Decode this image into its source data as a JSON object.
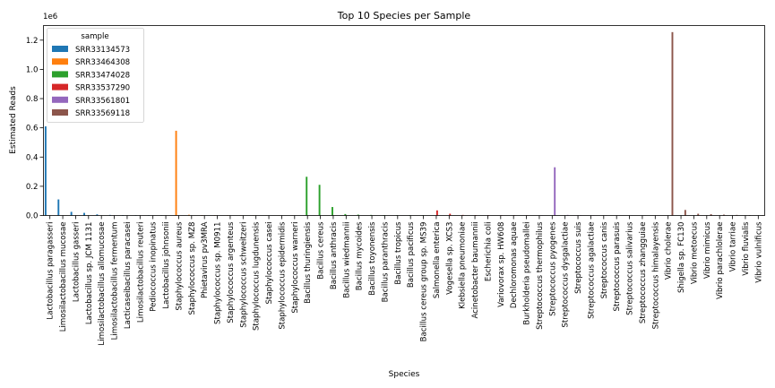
{
  "chart_data": {
    "type": "bar",
    "title": "Top 10 Species per Sample",
    "xlabel": "Species",
    "ylabel": "Estimated Reads",
    "y_offset_label": "1e6",
    "ylim": [
      0,
      1300000
    ],
    "yticks": [
      0,
      200000,
      400000,
      600000,
      800000,
      1000000,
      1200000
    ],
    "ytick_labels": [
      "0.0",
      "0.2",
      "0.4",
      "0.6",
      "0.8",
      "1.0",
      "1.2"
    ],
    "grid": false,
    "legend": {
      "title": "sample",
      "placement": "top-left"
    },
    "categories": [
      "Lactobacillus paragasseri",
      "Limosilactobacillus mucosae",
      "Lactobacillus gasseri",
      "Lactobacillus sp. JCM 1131",
      "Limosilactobacillus allomucosae",
      "Limosilactobacillus fermentum",
      "Lacticaseibacillus paracasei",
      "Limosilactobacillus reuteri",
      "Pediococcus inopinatus",
      "Lactobacillus johnsonii",
      "Staphylococcus aureus",
      "Staphylococcus sp. MZ8",
      "Phietavirus pv3MRA",
      "Staphylococcus sp. M0911",
      "Staphylococcus argenteus",
      "Staphylococcus schweitzeri",
      "Staphylococcus lugdunensis",
      "Staphylococcus casei",
      "Staphylococcus epidermidis",
      "Staphylococcus warneri",
      "Bacillus thuringiensis",
      "Bacillus cereus",
      "Bacillus anthracis",
      "Bacillus wiedmannii",
      "Bacillus mycoides",
      "Bacillus toyonensis",
      "Bacillus paranthracis",
      "Bacillus tropicus",
      "Bacillus pacificus",
      "Bacillus cereus group sp. MS39",
      "Salmonella enterica",
      "Vogesella sp. XCS3",
      "Klebsiella pneumoniae",
      "Acinetobacter baumannii",
      "Escherichia coli",
      "Variovorax sp. HW608",
      "Dechloromonas aquae",
      "Burkholderia pseudomallei",
      "Streptococcus thermophilus",
      "Streptococcus pyogenes",
      "Streptococcus dysgalactiae",
      "Streptococcus suis",
      "Streptococcus agalactiae",
      "Streptococcus canis",
      "Streptococcus parasuis",
      "Streptococcus salivarius",
      "Streptococcus zhangguiae",
      "Streptococcus himalayensis",
      "Vibrio cholerae",
      "Shigella sp. FC130",
      "Vibrio metoecus",
      "Vibrio mimicus",
      "Vibrio parachlolerae",
      "Vibrio tarriae",
      "Vibrio fluvialis",
      "Vibrio vulnificus"
    ],
    "series": [
      {
        "name": "SRR33134573",
        "color": "#1f77b4",
        "values": [
          610000,
          110000,
          25000,
          18000,
          8000,
          4000,
          3000,
          2500,
          2000,
          1500,
          0,
          0,
          0,
          0,
          0,
          0,
          0,
          0,
          0,
          0,
          0,
          0,
          0,
          0,
          0,
          0,
          0,
          0,
          0,
          0,
          0,
          0,
          0,
          0,
          0,
          0,
          0,
          0,
          0,
          0,
          0,
          0,
          0,
          0,
          0,
          0,
          0,
          0,
          0,
          0,
          0,
          0,
          0,
          0,
          0,
          0
        ]
      },
      {
        "name": "SRR33464308",
        "color": "#ff7f0e",
        "values": [
          0,
          0,
          0,
          0,
          0,
          0,
          0,
          0,
          0,
          0,
          580000,
          5000,
          3000,
          2000,
          2000,
          1500,
          1000,
          1000,
          1000,
          800,
          0,
          0,
          0,
          0,
          0,
          0,
          0,
          0,
          0,
          0,
          0,
          0,
          0,
          0,
          0,
          0,
          0,
          0,
          0,
          0,
          0,
          0,
          0,
          0,
          0,
          0,
          0,
          0,
          0,
          0,
          0,
          0,
          0,
          0,
          0,
          0
        ]
      },
      {
        "name": "SRR33474028",
        "color": "#2ca02c",
        "values": [
          0,
          0,
          0,
          0,
          0,
          0,
          0,
          0,
          0,
          0,
          0,
          0,
          0,
          0,
          0,
          0,
          0,
          0,
          0,
          0,
          265000,
          210000,
          58000,
          10000,
          6000,
          4000,
          3000,
          2500,
          2000,
          1500,
          0,
          0,
          0,
          0,
          0,
          0,
          0,
          0,
          0,
          0,
          0,
          0,
          0,
          0,
          0,
          0,
          0,
          0,
          0,
          0,
          0,
          0,
          0,
          0,
          0,
          0
        ]
      },
      {
        "name": "SRR33537290",
        "color": "#d62728",
        "values": [
          0,
          0,
          0,
          0,
          0,
          0,
          0,
          0,
          0,
          0,
          0,
          0,
          0,
          0,
          0,
          0,
          0,
          0,
          0,
          0,
          0,
          0,
          0,
          0,
          0,
          0,
          0,
          0,
          0,
          0,
          35000,
          12000,
          4000,
          3000,
          3000,
          2000,
          2000,
          1500,
          0,
          0,
          0,
          0,
          0,
          0,
          0,
          0,
          0,
          0,
          0,
          0,
          0,
          0,
          0,
          0,
          0,
          0
        ]
      },
      {
        "name": "SRR33561801",
        "color": "#9467bd",
        "values": [
          0,
          0,
          0,
          0,
          0,
          0,
          0,
          0,
          0,
          0,
          0,
          0,
          0,
          0,
          0,
          0,
          0,
          0,
          0,
          0,
          0,
          0,
          0,
          0,
          0,
          0,
          0,
          0,
          0,
          0,
          0,
          0,
          0,
          0,
          0,
          0,
          0,
          0,
          1500,
          330000,
          4000,
          2000,
          1500,
          1000,
          1000,
          800,
          600,
          500,
          0,
          0,
          0,
          0,
          0,
          0,
          0,
          0
        ]
      },
      {
        "name": "SRR33569118",
        "color": "#8c564b",
        "values": [
          0,
          0,
          0,
          0,
          0,
          0,
          0,
          0,
          0,
          0,
          0,
          0,
          0,
          0,
          0,
          0,
          0,
          0,
          0,
          0,
          0,
          0,
          0,
          0,
          0,
          0,
          0,
          0,
          0,
          0,
          0,
          0,
          0,
          0,
          0,
          0,
          0,
          0,
          0,
          0,
          0,
          0,
          0,
          0,
          0,
          0,
          0,
          0,
          1255000,
          38000,
          12000,
          9000,
          6000,
          4000,
          3000,
          2000
        ]
      }
    ]
  }
}
